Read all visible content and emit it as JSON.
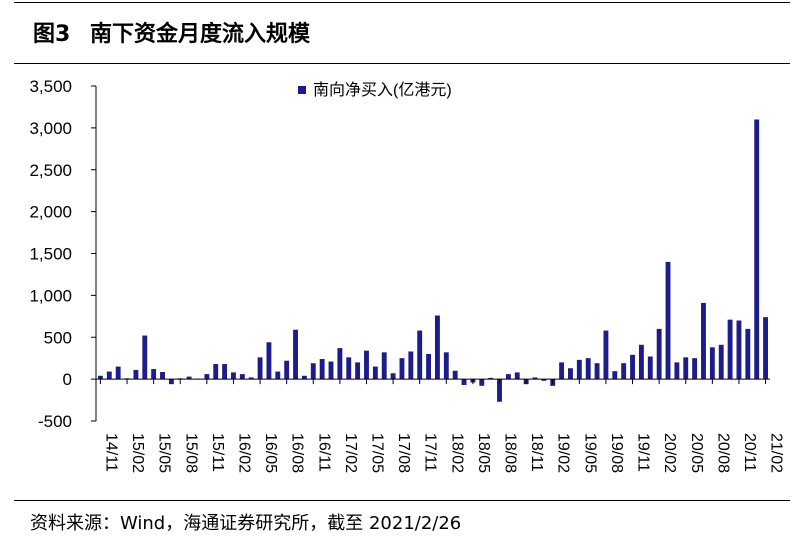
{
  "header": {
    "figure_label": "图3",
    "title": "南下资金月度流入规模"
  },
  "source": "资料来源：Wind，海通证券研究所，截至 2021/2/26",
  "colors": {
    "bar": "#1c1c8c",
    "axis": "#000000"
  },
  "chart_data": {
    "type": "bar",
    "legend": {
      "label": "南向净买入(亿港元)",
      "position": "top-center"
    },
    "ylim": [
      -500,
      3500
    ],
    "yticks": [
      -500,
      0,
      500,
      1000,
      1500,
      2000,
      2500,
      3000,
      3500
    ],
    "ytick_labels": [
      "-500",
      "0",
      "500",
      "1,000",
      "1,500",
      "2,000",
      "2,500",
      "3,000",
      "3,500"
    ],
    "categories": [
      "14/11",
      "14/12",
      "15/01",
      "15/02",
      "15/03",
      "15/04",
      "15/05",
      "15/06",
      "15/07",
      "15/08",
      "15/09",
      "15/10",
      "15/11",
      "15/12",
      "16/01",
      "16/02",
      "16/03",
      "16/04",
      "16/05",
      "16/06",
      "16/07",
      "16/08",
      "16/09",
      "16/10",
      "16/11",
      "16/12",
      "17/01",
      "17/02",
      "17/03",
      "17/04",
      "17/05",
      "17/06",
      "17/07",
      "17/08",
      "17/09",
      "17/10",
      "17/11",
      "17/12",
      "18/01",
      "18/02",
      "18/03",
      "18/04",
      "18/05",
      "18/06",
      "18/07",
      "18/08",
      "18/09",
      "18/10",
      "18/11",
      "18/12",
      "19/01",
      "19/02",
      "19/03",
      "19/04",
      "19/05",
      "19/06",
      "19/07",
      "19/08",
      "19/09",
      "19/10",
      "19/11",
      "19/12",
      "20/01",
      "20/02",
      "20/03",
      "20/04",
      "20/05",
      "20/06",
      "20/07",
      "20/08",
      "20/09",
      "20/10",
      "20/11",
      "20/12",
      "21/01",
      "21/02"
    ],
    "tick_labels": [
      "14/11",
      "15/02",
      "15/05",
      "15/08",
      "15/11",
      "16/02",
      "16/05",
      "16/08",
      "16/11",
      "17/02",
      "17/05",
      "17/08",
      "17/11",
      "18/02",
      "18/05",
      "18/08",
      "18/11",
      "19/02",
      "19/05",
      "19/08",
      "19/11",
      "20/02",
      "20/05",
      "20/08",
      "20/11",
      "21/02"
    ],
    "values": [
      40,
      90,
      150,
      10,
      110,
      520,
      120,
      85,
      -60,
      10,
      30,
      5,
      60,
      180,
      180,
      80,
      60,
      20,
      260,
      440,
      90,
      220,
      590,
      40,
      190,
      240,
      210,
      370,
      260,
      200,
      340,
      150,
      320,
      70,
      250,
      330,
      580,
      300,
      760,
      320,
      100,
      -70,
      -40,
      -80,
      15,
      -270,
      60,
      80,
      -60,
      20,
      -20,
      -80,
      200,
      130,
      230,
      250,
      190,
      580,
      95,
      190,
      290,
      410,
      270,
      600,
      1400,
      200,
      260,
      250,
      910,
      380,
      410,
      710,
      700,
      600,
      3100,
      740
    ]
  }
}
